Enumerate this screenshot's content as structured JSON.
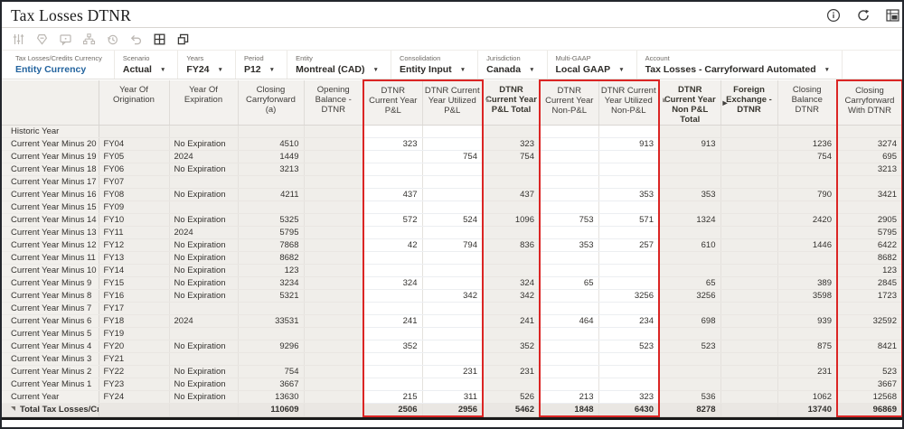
{
  "window": {
    "title": "Tax Losses DTNR"
  },
  "title_icons": [
    "info-icon",
    "refresh-icon",
    "actions-grid-icon"
  ],
  "toolbar": {
    "icons": [
      {
        "name": "adjust-sliders-icon",
        "enabled": false
      },
      {
        "name": "approvals-stamp-icon",
        "enabled": false
      },
      {
        "name": "comment-icon",
        "enabled": false
      },
      {
        "name": "hierarchy-icon",
        "enabled": false
      },
      {
        "name": "history-icon",
        "enabled": false
      },
      {
        "name": "undo-icon",
        "enabled": false
      },
      {
        "name": "grid-view-icon",
        "enabled": true
      },
      {
        "name": "freeze-panes-icon",
        "enabled": true
      }
    ]
  },
  "pov": {
    "items": [
      {
        "label": "Tax Losses/Credits Currency",
        "value": "Entity Currency",
        "type": "link"
      },
      {
        "label": "Scenario",
        "value": "Actual",
        "type": "dropdown"
      },
      {
        "label": "Years",
        "value": "FY24",
        "type": "dropdown"
      },
      {
        "label": "Period",
        "value": "P12",
        "type": "dropdown"
      },
      {
        "label": "Entity",
        "value": "Montreal (CAD)",
        "type": "dropdown"
      },
      {
        "label": "Consolidation",
        "value": "Entity Input",
        "type": "dropdown"
      },
      {
        "label": "Jurisdiction",
        "value": "Canada",
        "type": "dropdown"
      },
      {
        "label": "Multi-GAAP",
        "value": "Local GAAP",
        "type": "dropdown"
      },
      {
        "label": "Account",
        "value": "Tax Losses - Carryforward Automated",
        "type": "dropdown"
      }
    ]
  },
  "accent_colors": {
    "red_box": "#db2524",
    "link_blue": "#22639e"
  },
  "grid": {
    "columns": [
      {
        "label": "Year Of Origination",
        "align": "al",
        "editable": false
      },
      {
        "label": "Year Of Expiration",
        "align": "al",
        "editable": false
      },
      {
        "label": "Closing Carryforward (a)",
        "align": "ar",
        "editable": false
      },
      {
        "label": "Opening Balance - DTNR",
        "align": "ar",
        "editable": false
      },
      {
        "label": "DTNR Current Year P&L",
        "align": "ar",
        "editable": true,
        "red_left": true,
        "in_red": true
      },
      {
        "label": "DTNR Current Year Utilized P&L",
        "align": "ar",
        "editable": true,
        "red_right": true,
        "in_red": true
      },
      {
        "label": "DTNR Current Year P&L Total",
        "align": "ar",
        "editable": false,
        "bold": true,
        "formula": true
      },
      {
        "label": "DTNR Current Year Non-P&L",
        "align": "ar",
        "editable": true,
        "red_left": true,
        "in_red": true
      },
      {
        "label": "DTNR Current Year Utilized Non-P&L",
        "align": "ar",
        "editable": true,
        "red_right": true,
        "in_red": true
      },
      {
        "label": "DTNR Current Year Non P&L Total",
        "align": "ar",
        "editable": false,
        "bold": true,
        "formula": true
      },
      {
        "label": "Foreign Exchange - DTNR",
        "align": "ar",
        "editable": false,
        "bold": true,
        "expand": true
      },
      {
        "label": "Closing Balance DTNR",
        "align": "ar",
        "editable": false
      },
      {
        "label": "Closing Carryforward With DTNR",
        "align": "ar",
        "editable": false,
        "red_left": true,
        "red_right": true,
        "in_red": true
      }
    ],
    "rows": [
      {
        "header": "Historic Year",
        "cells": [
          "",
          "",
          "",
          "",
          "",
          "",
          "",
          "",
          "",
          "",
          "",
          "",
          ""
        ]
      },
      {
        "header": "Current Year Minus 20",
        "cells": [
          "FY04",
          "No Expiration",
          "4510",
          "",
          "323",
          "",
          "323",
          "",
          "913",
          "913",
          "",
          "1236",
          "3274"
        ]
      },
      {
        "header": "Current Year Minus 19",
        "cells": [
          "FY05",
          "2024",
          "1449",
          "",
          "",
          "754",
          "754",
          "",
          "",
          "",
          "",
          "754",
          "695"
        ]
      },
      {
        "header": "Current Year Minus 18",
        "cells": [
          "FY06",
          "No Expiration",
          "3213",
          "",
          "",
          "",
          "",
          "",
          "",
          "",
          "",
          "",
          "3213"
        ]
      },
      {
        "header": "Current Year Minus 17",
        "cells": [
          "FY07",
          "",
          "",
          "",
          "",
          "",
          "",
          "",
          "",
          "",
          "",
          "",
          ""
        ]
      },
      {
        "header": "Current Year Minus 16",
        "cells": [
          "FY08",
          "No Expiration",
          "4211",
          "",
          "437",
          "",
          "437",
          "",
          "353",
          "353",
          "",
          "790",
          "3421"
        ]
      },
      {
        "header": "Current Year Minus 15",
        "cells": [
          "FY09",
          "",
          "",
          "",
          "",
          "",
          "",
          "",
          "",
          "",
          "",
          "",
          ""
        ]
      },
      {
        "header": "Current Year Minus 14",
        "cells": [
          "FY10",
          "No Expiration",
          "5325",
          "",
          "572",
          "524",
          "1096",
          "753",
          "571",
          "1324",
          "",
          "2420",
          "2905"
        ]
      },
      {
        "header": "Current Year Minus 13",
        "cells": [
          "FY11",
          "2024",
          "5795",
          "",
          "",
          "",
          "",
          "",
          "",
          "",
          "",
          "",
          "5795"
        ]
      },
      {
        "header": "Current Year Minus 12",
        "cells": [
          "FY12",
          "No Expiration",
          "7868",
          "",
          "42",
          "794",
          "836",
          "353",
          "257",
          "610",
          "",
          "1446",
          "6422"
        ]
      },
      {
        "header": "Current Year Minus 11",
        "cells": [
          "FY13",
          "No Expiration",
          "8682",
          "",
          "",
          "",
          "",
          "",
          "",
          "",
          "",
          "",
          "8682"
        ]
      },
      {
        "header": "Current Year Minus 10",
        "cells": [
          "FY14",
          "No Expiration",
          "123",
          "",
          "",
          "",
          "",
          "",
          "",
          "",
          "",
          "",
          "123"
        ]
      },
      {
        "header": "Current Year Minus 9",
        "cells": [
          "FY15",
          "No Expiration",
          "3234",
          "",
          "324",
          "",
          "324",
          "65",
          "",
          "65",
          "",
          "389",
          "2845"
        ]
      },
      {
        "header": "Current Year Minus 8",
        "cells": [
          "FY16",
          "No Expiration",
          "5321",
          "",
          "",
          "342",
          "342",
          "",
          "3256",
          "3256",
          "",
          "3598",
          "1723"
        ]
      },
      {
        "header": "Current Year Minus 7",
        "cells": [
          "FY17",
          "",
          "",
          "",
          "",
          "",
          "",
          "",
          "",
          "",
          "",
          "",
          ""
        ]
      },
      {
        "header": "Current Year Minus 6",
        "cells": [
          "FY18",
          "2024",
          "33531",
          "",
          "241",
          "",
          "241",
          "464",
          "234",
          "698",
          "",
          "939",
          "32592"
        ]
      },
      {
        "header": "Current Year Minus 5",
        "cells": [
          "FY19",
          "",
          "",
          "",
          "",
          "",
          "",
          "",
          "",
          "",
          "",
          "",
          ""
        ]
      },
      {
        "header": "Current Year Minus 4",
        "cells": [
          "FY20",
          "No Expiration",
          "9296",
          "",
          "352",
          "",
          "352",
          "",
          "523",
          "523",
          "",
          "875",
          "8421"
        ]
      },
      {
        "header": "Current Year Minus 3",
        "cells": [
          "FY21",
          "",
          "",
          "",
          "",
          "",
          "",
          "",
          "",
          "",
          "",
          "",
          ""
        ]
      },
      {
        "header": "Current Year Minus 2",
        "cells": [
          "FY22",
          "No Expiration",
          "754",
          "",
          "",
          "231",
          "231",
          "",
          "",
          "",
          "",
          "231",
          "523"
        ]
      },
      {
        "header": "Current Year Minus 1",
        "cells": [
          "FY23",
          "No Expiration",
          "3667",
          "",
          "",
          "",
          "",
          "",
          "",
          "",
          "",
          "",
          "3667"
        ]
      },
      {
        "header": "Current Year",
        "cells": [
          "FY24",
          "No Expiration",
          "13630",
          "",
          "215",
          "311",
          "526",
          "213",
          "323",
          "536",
          "",
          "1062",
          "12568"
        ]
      },
      {
        "header": "Total Tax Losses/Credits",
        "total": true,
        "cells": [
          "",
          "",
          "110609",
          "",
          "2506",
          "2956",
          "5462",
          "1848",
          "6430",
          "8278",
          "",
          "13740",
          "96869"
        ]
      }
    ]
  }
}
